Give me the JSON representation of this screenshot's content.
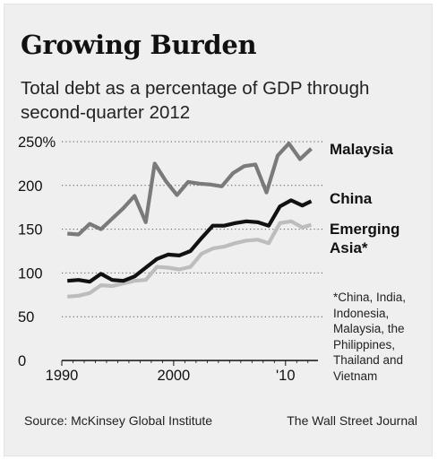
{
  "chart_data": {
    "type": "line",
    "title": "Growing Burden",
    "subtitle": "Total debt as a percentage of GDP through second-quarter 2012",
    "x_ticks": [
      "1990",
      "2000",
      "'10"
    ],
    "y_ticks": [
      "250%",
      "200",
      "150",
      "100",
      "50",
      "0"
    ],
    "ylim": [
      0,
      250
    ],
    "xlim": [
      1990,
      2012.5
    ],
    "grid": "horizontal dotted",
    "legend": "labels at line ends (right)",
    "series": [
      {
        "name": "Malaysia",
        "color": "#7a7a7a",
        "points": [
          [
            1990.5,
            145
          ],
          [
            1991.5,
            144
          ],
          [
            1992.5,
            156
          ],
          [
            1993.5,
            150
          ],
          [
            1994.5,
            162
          ],
          [
            1995.5,
            174
          ],
          [
            1996.5,
            188
          ],
          [
            1997.5,
            158
          ],
          [
            1998.3,
            225
          ],
          [
            1999.3,
            205
          ],
          [
            2000.3,
            189
          ],
          [
            2001.3,
            204
          ],
          [
            2002.3,
            202
          ],
          [
            2003.3,
            201
          ],
          [
            2004.3,
            199
          ],
          [
            2005.3,
            214
          ],
          [
            2006.3,
            222
          ],
          [
            2007.3,
            224
          ],
          [
            2008.3,
            192
          ],
          [
            2009.3,
            234
          ],
          [
            2010.3,
            248
          ],
          [
            2011.3,
            230
          ],
          [
            2012.3,
            242
          ]
        ]
      },
      {
        "name": "China",
        "color": "#111111",
        "points": [
          [
            1990.5,
            91
          ],
          [
            1991.5,
            92
          ],
          [
            1992.5,
            90
          ],
          [
            1993.5,
            99
          ],
          [
            1994.5,
            92
          ],
          [
            1995.5,
            91
          ],
          [
            1996.5,
            96
          ],
          [
            1997.5,
            106
          ],
          [
            1998.5,
            116
          ],
          [
            1999.5,
            121
          ],
          [
            2000.5,
            120
          ],
          [
            2001.5,
            125
          ],
          [
            2002.5,
            140
          ],
          [
            2003.5,
            154
          ],
          [
            2004.5,
            154
          ],
          [
            2005.5,
            157
          ],
          [
            2006.5,
            159
          ],
          [
            2007.5,
            158
          ],
          [
            2008.5,
            154
          ],
          [
            2009.5,
            176
          ],
          [
            2010.5,
            183
          ],
          [
            2011.5,
            177
          ],
          [
            2012.3,
            182
          ]
        ]
      },
      {
        "name": "Emerging Asia*",
        "color": "#bdbdbd",
        "points": [
          [
            1990.5,
            73
          ],
          [
            1991.5,
            74
          ],
          [
            1992.5,
            77
          ],
          [
            1993.5,
            86
          ],
          [
            1994.5,
            85
          ],
          [
            1995.5,
            88
          ],
          [
            1996.5,
            91
          ],
          [
            1997.5,
            92
          ],
          [
            1998.5,
            107
          ],
          [
            1999.5,
            106
          ],
          [
            2000.5,
            104
          ],
          [
            2001.5,
            107
          ],
          [
            2002.5,
            122
          ],
          [
            2003.5,
            128
          ],
          [
            2004.5,
            130
          ],
          [
            2005.5,
            134
          ],
          [
            2006.5,
            137
          ],
          [
            2007.5,
            138
          ],
          [
            2008.5,
            134
          ],
          [
            2009.5,
            157
          ],
          [
            2010.5,
            159
          ],
          [
            2011.5,
            152
          ],
          [
            2012.3,
            155
          ]
        ]
      }
    ],
    "labels": {
      "malaysia": "Malaysia",
      "china": "China",
      "emerging_line1": "Emerging",
      "emerging_line2": "Asia*"
    }
  },
  "footnote": "*China, India, Indonesia, Malaysia, the Philippines, Thailand and Vietnam",
  "source": "Source: McKinsey Global Institute",
  "credit": "The Wall Street Journal"
}
